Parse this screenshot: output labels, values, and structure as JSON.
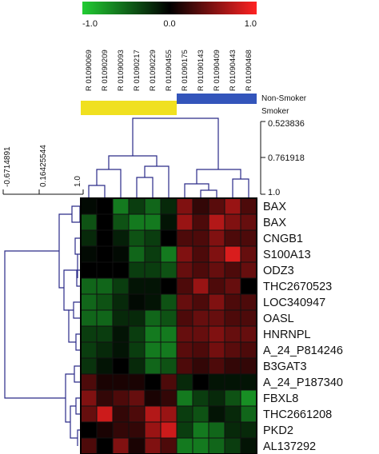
{
  "chart_data": {
    "type": "heatmap",
    "color_scale": {
      "min_label": "-1.0",
      "mid_label": "0.0",
      "max_label": "1.0",
      "min_color": "#22cc33",
      "mid_color": "#000000",
      "max_color": "#ff2222"
    },
    "groups": [
      {
        "name": "Non-Smoker",
        "color": "#3355bb"
      },
      {
        "name": "Smoker",
        "color": "#f0e020"
      }
    ],
    "samples": [
      {
        "name": "R 01090069",
        "group": "Smoker"
      },
      {
        "name": "R 01090209",
        "group": "Smoker"
      },
      {
        "name": "R 01090093",
        "group": "Smoker"
      },
      {
        "name": "R 01090217",
        "group": "Smoker"
      },
      {
        "name": "R 01090229",
        "group": "Smoker"
      },
      {
        "name": "R 01090455",
        "group": "Smoker"
      },
      {
        "name": "R 01090175",
        "group": "Non-Smoker"
      },
      {
        "name": "R 01090143",
        "group": "Non-Smoker"
      },
      {
        "name": "R 01090409",
        "group": "Non-Smoker"
      },
      {
        "name": "R 01090443",
        "group": "Non-Smoker"
      },
      {
        "name": "R 01090468",
        "group": "Non-Smoker"
      }
    ],
    "genes": [
      "BAX",
      "BAX",
      "CNGB1",
      "S100A13",
      "ODZ3",
      "THC2670523",
      "LOC340947",
      "OASL",
      "HNRNPL",
      "A_24_P814246",
      "B3GAT3",
      "A_24_P187340",
      "FBXL8",
      "THC2661208",
      "PKD2",
      "AL137292"
    ],
    "values": [
      [
        -0.05,
        0.0,
        -0.6,
        -0.3,
        -0.5,
        -0.2,
        0.5,
        0.2,
        0.35,
        0.6,
        0.3
      ],
      [
        -0.4,
        0.0,
        -0.4,
        -0.6,
        -0.6,
        -0.1,
        0.6,
        0.3,
        0.7,
        0.5,
        0.4
      ],
      [
        -0.2,
        0.0,
        -0.15,
        -0.4,
        -0.3,
        0.0,
        0.3,
        0.3,
        0.5,
        0.3,
        0.3
      ],
      [
        -0.05,
        0.0,
        -0.05,
        -0.5,
        -0.3,
        -0.6,
        0.5,
        0.3,
        0.5,
        0.85,
        0.4
      ],
      [
        0.0,
        0.0,
        0.0,
        -0.3,
        -0.3,
        -0.4,
        0.4,
        0.3,
        0.4,
        0.3,
        0.4
      ],
      [
        -0.5,
        -0.5,
        -0.3,
        -0.1,
        -0.1,
        0.0,
        0.3,
        0.6,
        0.3,
        0.4,
        0.0
      ],
      [
        -0.5,
        -0.4,
        -0.2,
        -0.05,
        -0.1,
        -0.4,
        0.4,
        0.3,
        0.5,
        0.3,
        0.3
      ],
      [
        -0.5,
        -0.5,
        -0.2,
        -0.2,
        -0.5,
        -0.4,
        0.3,
        0.4,
        0.4,
        0.3,
        0.3
      ],
      [
        -0.3,
        -0.3,
        -0.1,
        -0.3,
        -0.6,
        -0.6,
        0.4,
        0.4,
        0.5,
        0.4,
        0.4
      ],
      [
        -0.3,
        -0.2,
        -0.1,
        -0.3,
        -0.6,
        -0.6,
        0.35,
        0.3,
        0.45,
        0.35,
        0.3
      ],
      [
        -0.25,
        -0.1,
        0.0,
        -0.2,
        -0.5,
        -0.4,
        0.3,
        0.2,
        0.3,
        0.2,
        0.2
      ],
      [
        0.3,
        0.1,
        0.1,
        0.1,
        0.0,
        0.3,
        -0.2,
        0.0,
        -0.1,
        -0.1,
        -0.1
      ],
      [
        0.5,
        0.2,
        0.3,
        0.4,
        0.1,
        0.2,
        -0.6,
        -0.3,
        -0.2,
        -0.4,
        -0.7
      ],
      [
        0.4,
        0.8,
        0.2,
        0.3,
        0.7,
        0.6,
        -0.3,
        -0.4,
        -0.1,
        -0.2,
        -0.5
      ],
      [
        0.0,
        0.1,
        0.2,
        0.2,
        0.6,
        0.8,
        -0.3,
        -0.6,
        -0.5,
        -0.2,
        -0.2
      ],
      [
        0.3,
        0.0,
        0.5,
        0.1,
        0.5,
        0.3,
        -0.6,
        -0.6,
        -0.5,
        -0.3,
        -0.1
      ]
    ],
    "column_dendrogram_scale": [
      "0.523836",
      "0.761918",
      "1.0"
    ],
    "row_dendrogram_scale": [
      "-0.6714891",
      "0.16425544",
      "1.0"
    ]
  }
}
